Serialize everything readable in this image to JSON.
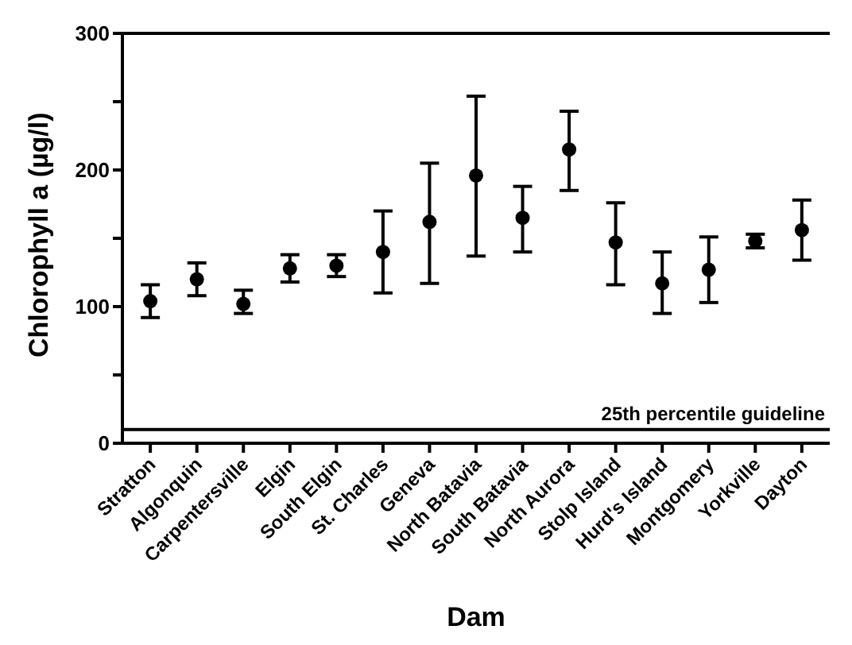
{
  "chart_data": {
    "type": "scatter",
    "xlabel": "Dam",
    "ylabel": "Chlorophyll a (µg/l)",
    "categories": [
      "Stratton",
      "Algonquin",
      "Carpentersville",
      "Elgin",
      "South Elgin",
      "St. Charles",
      "Geneva",
      "North Batavia",
      "South Batavia",
      "North Aurora",
      "Stolp Island",
      "Hurd's Island",
      "Montgomery",
      "Yorkville",
      "Dayton"
    ],
    "values": [
      104,
      120,
      102,
      128,
      130,
      140,
      162,
      196,
      165,
      215,
      147,
      117,
      127,
      148,
      156
    ],
    "errors": [
      [
        92,
        116
      ],
      [
        108,
        132
      ],
      [
        95,
        112
      ],
      [
        118,
        138
      ],
      [
        122,
        138
      ],
      [
        110,
        170
      ],
      [
        117,
        205
      ],
      [
        137,
        254
      ],
      [
        140,
        188
      ],
      [
        185,
        243
      ],
      [
        116,
        176
      ],
      [
        95,
        140
      ],
      [
        103,
        151
      ],
      [
        143,
        153
      ],
      [
        134,
        178
      ]
    ],
    "color": "#000000",
    "marker": "circle",
    "ylim": [
      0,
      300
    ],
    "yticks": [
      0,
      {
        "value": 50,
        "label": null
      },
      100,
      {
        "value": 150,
        "label": null
      },
      200,
      {
        "value": 250,
        "label": null
      },
      300
    ],
    "ref_lines": [
      {
        "axis": "y",
        "value": 10,
        "label": "25th percentile guideline",
        "color": "#000000"
      }
    ],
    "grid": false,
    "legend": false
  }
}
